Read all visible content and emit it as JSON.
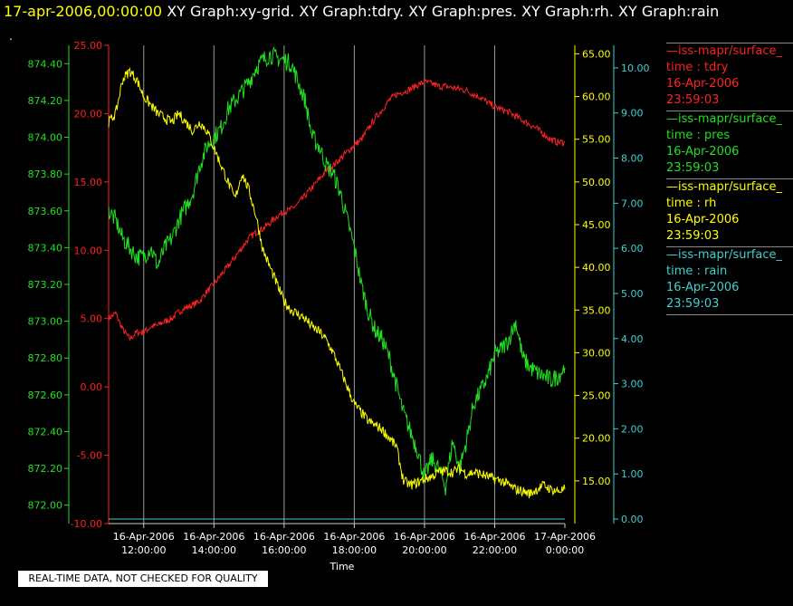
{
  "header": {
    "date": "17-apr-2006,00:00:00",
    "graphs": "XY Graph:xy-grid.  XY Graph:tdry.  XY Graph:pres.  XY Graph:rh.  XY Graph:rain",
    "dot": "."
  },
  "banner": "REAL-TIME DATA, NOT CHECKED FOR QUALITY",
  "legend": [
    {
      "source": "—iss-mapr/surface_",
      "var": "time : tdry",
      "date": "16-Apr-2006",
      "time": "23:59:03",
      "color": "#ff2020"
    },
    {
      "source": "—iss-mapr/surface_",
      "var": "time : pres",
      "date": "16-Apr-2006",
      "time": "23:59:03",
      "color": "#20e020"
    },
    {
      "source": "—iss-mapr/surface_",
      "var": "time : rh",
      "date": "16-Apr-2006",
      "time": "23:59:03",
      "color": "#ffff00"
    },
    {
      "source": "—iss-mapr/surface_",
      "var": "time : rain",
      "date": "16-Apr-2006",
      "time": "23:59:03",
      "color": "#40d0d0"
    }
  ],
  "chart_data": {
    "type": "line",
    "xlabel": "Time",
    "xlim": [
      "16-Apr-2006 11:00",
      "17-Apr-2006 00:00"
    ],
    "x_ticks": [
      {
        "d": "16-Apr-2006",
        "t": "12:00:00",
        "h": 12
      },
      {
        "d": "16-Apr-2006",
        "t": "14:00:00",
        "h": 14
      },
      {
        "d": "16-Apr-2006",
        "t": "16:00:00",
        "h": 16
      },
      {
        "d": "16-Apr-2006",
        "t": "18:00:00",
        "h": 18
      },
      {
        "d": "16-Apr-2006",
        "t": "20:00:00",
        "h": 20
      },
      {
        "d": "16-Apr-2006",
        "t": "22:00:00",
        "h": 22
      },
      {
        "d": "17-Apr-2006",
        "t": "0:00:00",
        "h": 24
      }
    ],
    "grid": "vertical",
    "axes": {
      "tdry": {
        "color": "#ff2020",
        "ylim": [
          -10,
          25
        ],
        "ticks": [
          "25.00",
          "20.00",
          "15.00",
          "10.00",
          "5.00",
          "0.00",
          "-5.00",
          "-10.00"
        ]
      },
      "pres": {
        "color": "#20e020",
        "ylim": [
          871.9,
          874.5
        ],
        "ticks": [
          "874.40",
          "874.20",
          "874.00",
          "873.80",
          "873.60",
          "873.40",
          "873.20",
          "873.00",
          "872.80",
          "872.60",
          "872.40",
          "872.20",
          "872.00"
        ]
      },
      "rh": {
        "color": "#ffff00",
        "ylim": [
          10,
          66
        ],
        "ticks": [
          "65.00",
          "60.00",
          "55.00",
          "50.00",
          "45.00",
          "40.00",
          "35.00",
          "30.00",
          "25.00",
          "20.00",
          "15.00"
        ]
      },
      "rain": {
        "color": "#40d0d0",
        "ylim": [
          -0.1,
          10.5
        ],
        "ticks": [
          "10.00",
          "9.00",
          "8.00",
          "7.00",
          "6.00",
          "5.00",
          "4.00",
          "3.00",
          "2.00",
          "1.00",
          "0.00"
        ]
      }
    },
    "series": [
      {
        "name": "tdry",
        "axis": "tdry",
        "color": "#ff2020",
        "noise": 0.25,
        "x": [
          11.0,
          11.2,
          11.4,
          11.6,
          11.8,
          12.0,
          12.2,
          12.4,
          12.6,
          12.8,
          13.0,
          13.2,
          13.4,
          13.6,
          13.8,
          14.0,
          14.2,
          14.4,
          14.6,
          14.8,
          15.0,
          15.2,
          15.4,
          15.6,
          15.8,
          16.0,
          16.2,
          16.4,
          16.6,
          16.8,
          17.0,
          17.2,
          17.4,
          17.6,
          17.8,
          18.0,
          18.2,
          18.4,
          18.6,
          18.8,
          19.0,
          19.2,
          19.4,
          19.6,
          19.8,
          20.0,
          20.2,
          20.4,
          20.6,
          20.8,
          21.0,
          21.2,
          21.4,
          21.6,
          21.8,
          22.0,
          22.2,
          22.4,
          22.6,
          22.8,
          23.0,
          23.2,
          23.4,
          23.6,
          23.8,
          24.0
        ],
        "y": [
          5.0,
          5.4,
          4.2,
          3.5,
          4.0,
          4.0,
          4.4,
          4.5,
          4.8,
          5.0,
          5.5,
          5.8,
          6.0,
          6.3,
          7.0,
          7.5,
          8.2,
          8.8,
          9.5,
          10.2,
          10.9,
          11.3,
          11.6,
          12.0,
          12.5,
          12.8,
          13.0,
          13.4,
          14.0,
          14.6,
          15.2,
          15.8,
          16.2,
          16.7,
          17.2,
          17.7,
          18.1,
          18.9,
          19.7,
          20.3,
          21.0,
          21.4,
          21.6,
          21.8,
          22.1,
          22.3,
          22.2,
          22.0,
          22.0,
          21.9,
          21.8,
          21.7,
          21.4,
          21.2,
          20.8,
          20.5,
          20.3,
          20.1,
          19.8,
          19.5,
          19.2,
          18.9,
          18.5,
          18.1,
          17.9,
          17.9
        ]
      },
      {
        "name": "pres",
        "axis": "pres",
        "color": "#20e020",
        "noise": 0.05,
        "x": [
          11.0,
          11.2,
          11.4,
          11.6,
          11.8,
          12.0,
          12.2,
          12.4,
          12.6,
          12.8,
          13.0,
          13.2,
          13.4,
          13.6,
          13.8,
          14.0,
          14.2,
          14.4,
          14.6,
          14.8,
          15.0,
          15.2,
          15.4,
          15.6,
          15.8,
          16.0,
          16.2,
          16.4,
          16.6,
          16.8,
          17.0,
          17.2,
          17.4,
          17.6,
          17.8,
          18.0,
          18.2,
          18.4,
          18.6,
          18.8,
          19.0,
          19.2,
          19.4,
          19.6,
          19.8,
          20.0,
          20.2,
          20.4,
          20.6,
          20.8,
          21.0,
          21.2,
          21.4,
          21.6,
          21.8,
          22.0,
          22.2,
          22.4,
          22.6,
          22.8,
          23.0,
          23.2,
          23.4,
          23.6,
          23.8,
          24.0
        ],
        "y": [
          873.6,
          873.55,
          873.45,
          873.4,
          873.35,
          873.35,
          873.4,
          873.3,
          873.4,
          873.45,
          873.55,
          873.62,
          873.7,
          873.85,
          873.95,
          874.0,
          874.05,
          874.15,
          874.2,
          874.25,
          874.3,
          874.38,
          874.42,
          874.45,
          874.43,
          874.42,
          874.4,
          874.3,
          874.2,
          874.0,
          873.95,
          873.85,
          873.8,
          873.7,
          873.55,
          873.4,
          873.2,
          873.05,
          872.95,
          872.9,
          872.8,
          872.65,
          872.5,
          872.4,
          872.3,
          872.15,
          872.25,
          872.2,
          872.1,
          872.35,
          872.2,
          872.35,
          872.55,
          872.62,
          872.7,
          872.82,
          872.85,
          872.9,
          873.0,
          872.8,
          872.75,
          872.72,
          872.7,
          872.68,
          872.7,
          872.75
        ]
      },
      {
        "name": "rh",
        "axis": "rh",
        "color": "#ffff00",
        "noise": 0.6,
        "x": [
          11.0,
          11.2,
          11.4,
          11.6,
          11.8,
          12.0,
          12.2,
          12.4,
          12.6,
          12.8,
          13.0,
          13.2,
          13.4,
          13.6,
          13.8,
          14.0,
          14.2,
          14.4,
          14.6,
          14.8,
          15.0,
          15.2,
          15.4,
          15.6,
          15.8,
          16.0,
          16.2,
          16.4,
          16.6,
          16.8,
          17.0,
          17.2,
          17.4,
          17.6,
          17.8,
          18.0,
          18.2,
          18.4,
          18.6,
          18.8,
          19.0,
          19.2,
          19.4,
          19.6,
          19.8,
          20.0,
          20.2,
          20.4,
          20.6,
          20.8,
          21.0,
          21.2,
          21.4,
          21.6,
          21.8,
          22.0,
          22.2,
          22.4,
          22.6,
          22.8,
          23.0,
          23.2,
          23.4,
          23.6,
          23.8,
          24.0
        ],
        "y": [
          57.0,
          58.0,
          62.0,
          63.0,
          62.0,
          60.0,
          59.0,
          58.0,
          57.5,
          57.0,
          58.0,
          57.0,
          56.0,
          57.0,
          56.0,
          54.0,
          52.0,
          50.0,
          48.0,
          51.0,
          49.0,
          46.0,
          42.0,
          40.0,
          38.0,
          36.0,
          35.0,
          34.5,
          34.0,
          33.0,
          32.5,
          31.5,
          30.0,
          28.0,
          26.0,
          24.0,
          23.0,
          22.0,
          21.5,
          21.0,
          20.0,
          19.0,
          15.0,
          14.5,
          14.8,
          15.2,
          15.5,
          16.0,
          16.2,
          16.0,
          16.5,
          15.8,
          16.0,
          15.8,
          15.5,
          15.2,
          15.0,
          14.5,
          14.0,
          13.8,
          13.5,
          14.0,
          14.5,
          14.0,
          13.8,
          14.0
        ]
      },
      {
        "name": "rain",
        "axis": "rain",
        "color": "#40d0d0",
        "noise": 0,
        "x": [
          11.0,
          24.0
        ],
        "y": [
          0.0,
          0.0
        ]
      }
    ]
  }
}
